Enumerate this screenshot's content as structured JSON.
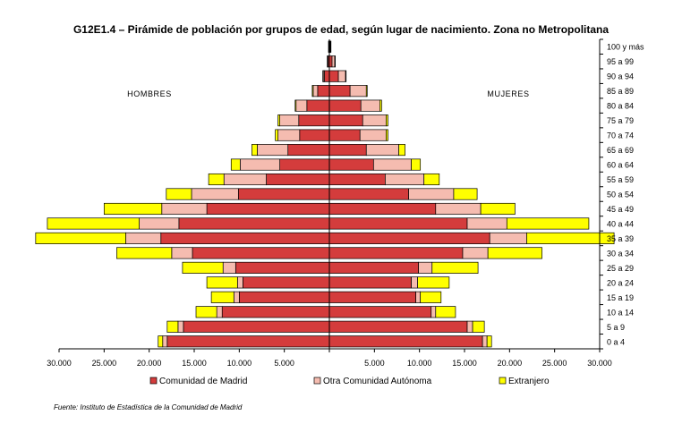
{
  "chart_data": {
    "type": "bar",
    "orientation": "horizontal-population-pyramid",
    "title": "G12E1.4 – Pirámide de población por grupos de edad, según lugar de nacimiento. Zona no Metropolitana",
    "source": "Fuente: Instituto de Estadística de la Comunidad de Madrid",
    "side_labels": {
      "left": "HOMBRES",
      "right": "MUJERES"
    },
    "xlim": [
      -30000,
      30000
    ],
    "x_ticks": [
      {
        "value": -30000,
        "label": "30.000"
      },
      {
        "value": -25000,
        "label": "25.000"
      },
      {
        "value": -20000,
        "label": "20.000"
      },
      {
        "value": -15000,
        "label": "15.000"
      },
      {
        "value": -10000,
        "label": "10.000"
      },
      {
        "value": -5000,
        "label": "5.000"
      },
      {
        "value": 5000,
        "label": "5.000"
      },
      {
        "value": 10000,
        "label": "10.000"
      },
      {
        "value": 15000,
        "label": "15.000"
      },
      {
        "value": 20000,
        "label": "20.000"
      },
      {
        "value": 25000,
        "label": "25.000"
      },
      {
        "value": 30000,
        "label": "30.000"
      }
    ],
    "categories": [
      "0 a 4",
      "5 a 9",
      "10 a 14",
      "15 a 19",
      "20 a 24",
      "25 a 29",
      "30 a 34",
      "35 a 39",
      "40 a 44",
      "45 a 49",
      "50 a 54",
      "55 a 59",
      "60 a 64",
      "65 a 69",
      "70 a 74",
      "75 a 79",
      "80 a 84",
      "85 a 89",
      "90 a 94",
      "95 a 99",
      "100 y más"
    ],
    "colors": [
      "#d43c3c",
      "#f5bcb0",
      "#ffff00"
    ],
    "series": [
      {
        "name": "Comunidad de Madrid",
        "men": [
          18000,
          16200,
          11900,
          10000,
          9600,
          10400,
          15200,
          18700,
          16700,
          13600,
          10100,
          7000,
          5500,
          4600,
          3300,
          3400,
          2500,
          1300,
          550,
          150,
          60
        ],
        "women": [
          17000,
          15300,
          11300,
          9600,
          9100,
          9900,
          14800,
          17800,
          15300,
          11800,
          8800,
          6200,
          4900,
          4100,
          3400,
          3700,
          3500,
          2300,
          1000,
          300,
          80
        ]
      },
      {
        "name": "Otra Comunidad Autónoma",
        "men": [
          500,
          600,
          600,
          600,
          600,
          1400,
          2300,
          3900,
          4400,
          5000,
          5200,
          4700,
          4400,
          3400,
          2400,
          2100,
          1200,
          500,
          150,
          60,
          20
        ],
        "women": [
          500,
          600,
          500,
          500,
          700,
          1500,
          2800,
          4100,
          4400,
          5000,
          5000,
          4300,
          4200,
          3600,
          2900,
          2600,
          2100,
          1800,
          800,
          300,
          40
        ]
      },
      {
        "name": "Extranjero",
        "men": [
          500,
          1200,
          2300,
          2500,
          3400,
          4500,
          6100,
          10000,
          10200,
          6400,
          2800,
          1700,
          1000,
          600,
          300,
          200,
          100,
          100,
          30,
          20,
          10
        ],
        "women": [
          500,
          1300,
          2200,
          2300,
          3500,
          5100,
          6000,
          9700,
          9100,
          3800,
          2600,
          1700,
          1000,
          700,
          200,
          200,
          200,
          100,
          40,
          20,
          10
        ]
      }
    ]
  }
}
